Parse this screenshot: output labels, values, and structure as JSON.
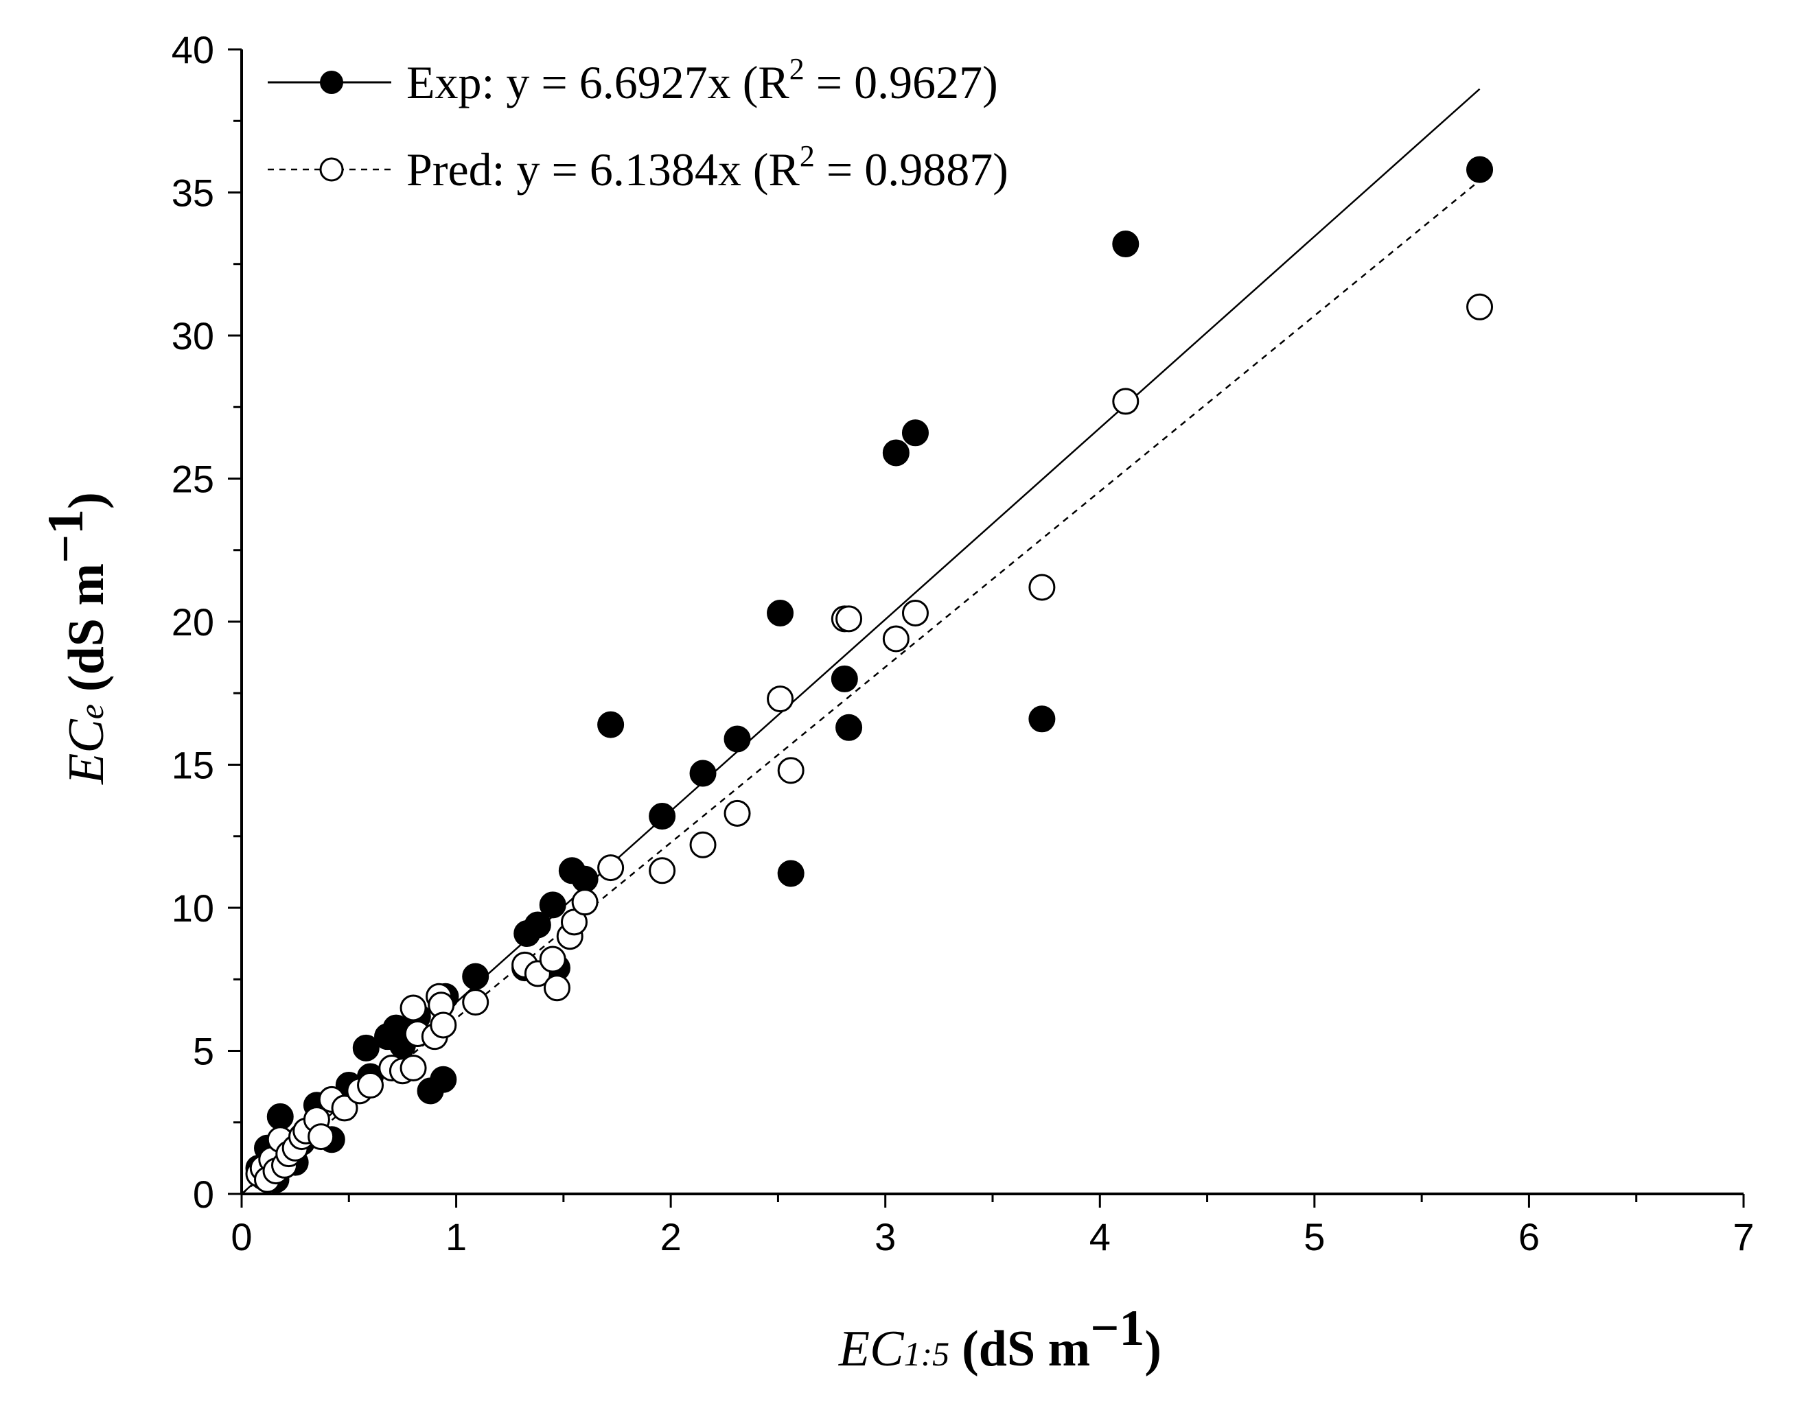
{
  "chart_data": {
    "type": "scatter",
    "xlim": [
      0,
      7
    ],
    "ylim": [
      0,
      40
    ],
    "x_ticks": [
      0,
      1,
      2,
      3,
      4,
      5,
      6,
      7
    ],
    "y_ticks": [
      0,
      5,
      10,
      15,
      20,
      25,
      30,
      35,
      40
    ],
    "xlabel": {
      "symbol": "EC",
      "subscript": "1:5",
      "unit": "(dS m",
      "exp": "−1",
      "close": ")"
    },
    "ylabel": {
      "symbol": "EC",
      "subscript": "e",
      "unit": "(dS m",
      "exp": "−1",
      "close": ")"
    },
    "legend_position": "top-left",
    "series": [
      {
        "name": "Exp",
        "label": "Exp:  y = 6.6927x   (R",
        "r2": "2",
        "r2_value": " = 0.9627)",
        "marker": "filled-circle",
        "line_style": "solid",
        "slope": 6.6927,
        "fit_x_max": 5.77,
        "points": [
          [
            0.08,
            0.9
          ],
          [
            0.1,
            0.6
          ],
          [
            0.12,
            1.6
          ],
          [
            0.13,
            0.8
          ],
          [
            0.15,
            1.2
          ],
          [
            0.16,
            0.5
          ],
          [
            0.18,
            2.7
          ],
          [
            0.2,
            1.0
          ],
          [
            0.22,
            1.5
          ],
          [
            0.25,
            1.1
          ],
          [
            0.28,
            1.8
          ],
          [
            0.32,
            2.1
          ],
          [
            0.35,
            3.1
          ],
          [
            0.42,
            1.9
          ],
          [
            0.5,
            3.8
          ],
          [
            0.58,
            5.1
          ],
          [
            0.6,
            4.1
          ],
          [
            0.68,
            5.5
          ],
          [
            0.72,
            5.8
          ],
          [
            0.75,
            5.2
          ],
          [
            0.82,
            6.2
          ],
          [
            0.88,
            3.6
          ],
          [
            0.94,
            4.0
          ],
          [
            0.95,
            6.9
          ],
          [
            1.09,
            7.6
          ],
          [
            1.32,
            7.9
          ],
          [
            1.33,
            9.1
          ],
          [
            1.38,
            9.4
          ],
          [
            1.45,
            10.1
          ],
          [
            1.47,
            7.9
          ],
          [
            1.54,
            11.3
          ],
          [
            1.6,
            11.0
          ],
          [
            1.72,
            16.4
          ],
          [
            1.96,
            13.2
          ],
          [
            2.15,
            14.7
          ],
          [
            2.31,
            15.9
          ],
          [
            2.51,
            20.3
          ],
          [
            2.56,
            11.2
          ],
          [
            2.81,
            18.0
          ],
          [
            2.83,
            16.3
          ],
          [
            3.05,
            25.9
          ],
          [
            3.14,
            26.6
          ],
          [
            3.73,
            16.6
          ],
          [
            4.12,
            33.2
          ],
          [
            5.77,
            35.8
          ]
        ]
      },
      {
        "name": "Pred",
        "label": "Pred: y = 6.1384x   (R",
        "r2": "2",
        "r2_value": " = 0.9887)",
        "marker": "open-circle",
        "line_style": "dashed",
        "slope": 6.1384,
        "fit_x_max": 5.77,
        "points": [
          [
            0.08,
            0.7
          ],
          [
            0.1,
            0.9
          ],
          [
            0.12,
            0.5
          ],
          [
            0.14,
            1.2
          ],
          [
            0.16,
            0.8
          ],
          [
            0.18,
            1.9
          ],
          [
            0.2,
            1.0
          ],
          [
            0.22,
            1.4
          ],
          [
            0.25,
            1.6
          ],
          [
            0.28,
            2.0
          ],
          [
            0.3,
            2.2
          ],
          [
            0.35,
            2.6
          ],
          [
            0.37,
            2.0
          ],
          [
            0.42,
            3.3
          ],
          [
            0.48,
            3.0
          ],
          [
            0.55,
            3.6
          ],
          [
            0.6,
            3.8
          ],
          [
            0.7,
            4.4
          ],
          [
            0.75,
            4.3
          ],
          [
            0.8,
            4.4
          ],
          [
            0.8,
            6.5
          ],
          [
            0.82,
            5.6
          ],
          [
            0.9,
            5.5
          ],
          [
            0.92,
            6.9
          ],
          [
            0.93,
            6.6
          ],
          [
            0.94,
            5.9
          ],
          [
            1.09,
            6.7
          ],
          [
            1.32,
            8.0
          ],
          [
            1.38,
            7.7
          ],
          [
            1.45,
            8.2
          ],
          [
            1.47,
            7.2
          ],
          [
            1.53,
            9.0
          ],
          [
            1.55,
            9.5
          ],
          [
            1.6,
            10.2
          ],
          [
            1.72,
            11.4
          ],
          [
            1.96,
            11.3
          ],
          [
            2.15,
            12.2
          ],
          [
            2.31,
            13.3
          ],
          [
            2.51,
            17.3
          ],
          [
            2.56,
            14.8
          ],
          [
            2.81,
            20.1
          ],
          [
            2.83,
            20.1
          ],
          [
            3.05,
            19.4
          ],
          [
            3.14,
            20.3
          ],
          [
            3.73,
            21.2
          ],
          [
            4.12,
            27.7
          ],
          [
            5.77,
            31.0
          ]
        ]
      }
    ]
  }
}
